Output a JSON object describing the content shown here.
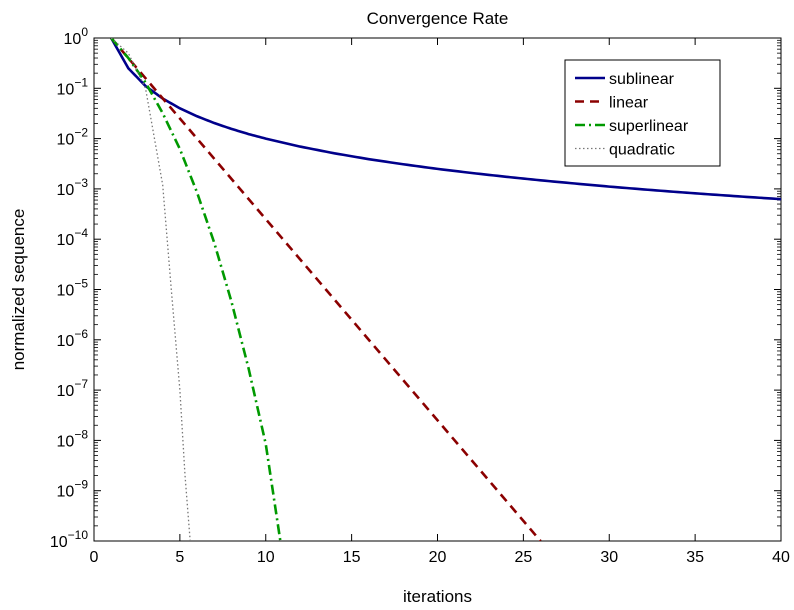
{
  "chart_data": {
    "type": "line",
    "title": "Convergence Rate",
    "xlabel": "iterations",
    "ylabel": "normalized sequence",
    "xlim": [
      0,
      40
    ],
    "ylim": [
      1e-10,
      1
    ],
    "yscale": "log",
    "grid": false,
    "legend_position": "top-right",
    "x_ticks": [
      0,
      5,
      10,
      15,
      20,
      25,
      30,
      35,
      40
    ],
    "y_ticks": [
      {
        "exp": 0,
        "label_base": "10",
        "label_exp": "0"
      },
      {
        "exp": -1,
        "label_base": "10",
        "label_exp": "−1"
      },
      {
        "exp": -2,
        "label_base": "10",
        "label_exp": "−2"
      },
      {
        "exp": -3,
        "label_base": "10",
        "label_exp": "−3"
      },
      {
        "exp": -4,
        "label_base": "10",
        "label_exp": "−4"
      },
      {
        "exp": -5,
        "label_base": "10",
        "label_exp": "−5"
      },
      {
        "exp": -6,
        "label_base": "10",
        "label_exp": "−6"
      },
      {
        "exp": -7,
        "label_base": "10",
        "label_exp": "−7"
      },
      {
        "exp": -8,
        "label_base": "10",
        "label_exp": "−8"
      },
      {
        "exp": -9,
        "label_base": "10",
        "label_exp": "−9"
      },
      {
        "exp": -10,
        "label_base": "10",
        "label_exp": "−10"
      }
    ],
    "series": [
      {
        "name": "sublinear",
        "color": "#00008B",
        "style": "solid",
        "x": [
          1,
          2,
          3,
          4,
          5,
          6,
          7,
          8,
          9,
          10,
          12,
          14,
          16,
          18,
          20,
          22,
          24,
          26,
          28,
          30,
          32,
          34,
          36,
          38,
          40
        ],
        "y": [
          1,
          0.25,
          0.111,
          0.0625,
          0.04,
          0.0278,
          0.0204,
          0.0156,
          0.0123,
          0.01,
          0.00694,
          0.0051,
          0.0039,
          0.00309,
          0.0025,
          0.00207,
          0.00174,
          0.00148,
          0.00128,
          0.00111,
          0.000977,
          0.000865,
          0.000772,
          0.000693,
          0.000625
        ]
      },
      {
        "name": "linear",
        "color": "#8B0000",
        "style": "dashed",
        "x": [
          1,
          26
        ],
        "y": [
          1,
          1e-10
        ]
      },
      {
        "name": "superlinear",
        "color": "#009900",
        "style": "dashdot",
        "x": [
          1,
          2,
          3,
          4,
          5,
          6,
          7,
          8,
          9,
          10,
          10.85
        ],
        "y": [
          1,
          0.4,
          0.13,
          0.032,
          0.0062,
          0.00085,
          8.5e-05,
          5.8e-06,
          2.7e-07,
          8.5e-09,
          1e-10
        ]
      },
      {
        "name": "quadratic",
        "color": "#777777",
        "style": "dotted",
        "x": [
          1,
          2,
          3,
          4,
          4.5,
          5,
          5.3,
          5.6
        ],
        "y": [
          1,
          0.5,
          0.1,
          0.0012,
          1e-05,
          1e-07,
          2e-09,
          1e-10
        ]
      }
    ]
  }
}
